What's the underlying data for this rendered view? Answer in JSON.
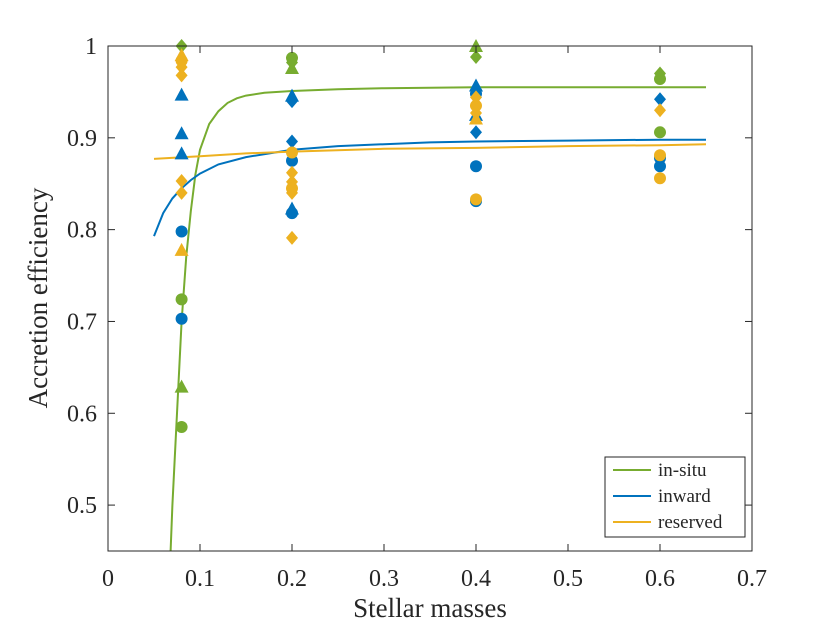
{
  "chart_data": {
    "type": "scatter",
    "title": "",
    "xlabel": "Stellar masses",
    "ylabel": "Accretion efficiency",
    "xlim": [
      0,
      0.7
    ],
    "ylim": [
      0.45,
      1.0
    ],
    "xticks": [
      0,
      0.1,
      0.2,
      0.3,
      0.4,
      0.5,
      0.6,
      0.7
    ],
    "xtick_labels": [
      "0",
      "0.1",
      "0.2",
      "0.3",
      "0.4",
      "0.5",
      "0.6",
      "0.7"
    ],
    "yticks": [
      0.5,
      0.6,
      0.7,
      0.8,
      0.9,
      1.0
    ],
    "ytick_labels": [
      "0.5",
      "0.6",
      "0.7",
      "0.8",
      "0.9",
      "1"
    ],
    "grid": false,
    "legend_position": "bottom-right",
    "series": [
      {
        "name": "in-situ",
        "color": "#77AC30",
        "points": [
          {
            "x": 0.08,
            "y": 1.0,
            "marker": "diamond"
          },
          {
            "x": 0.08,
            "y": 0.724,
            "marker": "circle"
          },
          {
            "x": 0.08,
            "y": 0.629,
            "marker": "triangle"
          },
          {
            "x": 0.08,
            "y": 0.585,
            "marker": "circle"
          },
          {
            "x": 0.2,
            "y": 0.987,
            "marker": "circle"
          },
          {
            "x": 0.2,
            "y": 0.982,
            "marker": "diamond"
          },
          {
            "x": 0.2,
            "y": 0.976,
            "marker": "triangle"
          },
          {
            "x": 0.4,
            "y": 1.0,
            "marker": "triangle"
          },
          {
            "x": 0.4,
            "y": 0.988,
            "marker": "diamond"
          },
          {
            "x": 0.6,
            "y": 0.97,
            "marker": "diamond"
          },
          {
            "x": 0.6,
            "y": 0.964,
            "marker": "circle"
          },
          {
            "x": 0.6,
            "y": 0.906,
            "marker": "circle"
          }
        ],
        "fit": {
          "x": [
            0.068,
            0.07,
            0.075,
            0.08,
            0.085,
            0.09,
            0.095,
            0.1,
            0.11,
            0.12,
            0.13,
            0.14,
            0.15,
            0.17,
            0.2,
            0.25,
            0.3,
            0.4,
            0.5,
            0.6,
            0.65
          ],
          "y": [
            0.45,
            0.5,
            0.6,
            0.7,
            0.77,
            0.82,
            0.86,
            0.887,
            0.915,
            0.929,
            0.938,
            0.943,
            0.946,
            0.949,
            0.951,
            0.953,
            0.954,
            0.955,
            0.955,
            0.955,
            0.955
          ]
        }
      },
      {
        "name": "inward",
        "color": "#0072BD",
        "points": [
          {
            "x": 0.08,
            "y": 0.947,
            "marker": "triangle"
          },
          {
            "x": 0.08,
            "y": 0.905,
            "marker": "triangle"
          },
          {
            "x": 0.08,
            "y": 0.883,
            "marker": "triangle"
          },
          {
            "x": 0.08,
            "y": 0.798,
            "marker": "circle"
          },
          {
            "x": 0.08,
            "y": 0.703,
            "marker": "circle"
          },
          {
            "x": 0.2,
            "y": 0.946,
            "marker": "triangle"
          },
          {
            "x": 0.2,
            "y": 0.94,
            "marker": "diamond"
          },
          {
            "x": 0.2,
            "y": 0.896,
            "marker": "diamond"
          },
          {
            "x": 0.2,
            "y": 0.875,
            "marker": "circle"
          },
          {
            "x": 0.2,
            "y": 0.823,
            "marker": "triangle"
          },
          {
            "x": 0.2,
            "y": 0.818,
            "marker": "circle"
          },
          {
            "x": 0.4,
            "y": 0.957,
            "marker": "triangle"
          },
          {
            "x": 0.4,
            "y": 0.948,
            "marker": "circle"
          },
          {
            "x": 0.4,
            "y": 0.925,
            "marker": "triangle"
          },
          {
            "x": 0.4,
            "y": 0.906,
            "marker": "diamond"
          },
          {
            "x": 0.4,
            "y": 0.869,
            "marker": "circle"
          },
          {
            "x": 0.4,
            "y": 0.831,
            "marker": "circle"
          },
          {
            "x": 0.6,
            "y": 0.942,
            "marker": "diamond"
          },
          {
            "x": 0.6,
            "y": 0.878,
            "marker": "circle"
          },
          {
            "x": 0.6,
            "y": 0.869,
            "marker": "circle"
          }
        ],
        "fit": {
          "x": [
            0.05,
            0.06,
            0.07,
            0.08,
            0.09,
            0.1,
            0.12,
            0.15,
            0.2,
            0.25,
            0.3,
            0.35,
            0.4,
            0.5,
            0.6,
            0.65
          ],
          "y": [
            0.793,
            0.818,
            0.834,
            0.845,
            0.854,
            0.861,
            0.871,
            0.879,
            0.887,
            0.891,
            0.893,
            0.895,
            0.896,
            0.897,
            0.898,
            0.898
          ]
        }
      },
      {
        "name": "reserved",
        "color": "#EDB120",
        "points": [
          {
            "x": 0.08,
            "y": 0.99,
            "marker": "triangle"
          },
          {
            "x": 0.08,
            "y": 0.984,
            "marker": "circle"
          },
          {
            "x": 0.08,
            "y": 0.977,
            "marker": "diamond"
          },
          {
            "x": 0.08,
            "y": 0.968,
            "marker": "diamond"
          },
          {
            "x": 0.08,
            "y": 0.853,
            "marker": "diamond"
          },
          {
            "x": 0.08,
            "y": 0.84,
            "marker": "diamond"
          },
          {
            "x": 0.08,
            "y": 0.778,
            "marker": "triangle"
          },
          {
            "x": 0.2,
            "y": 0.884,
            "marker": "circle"
          },
          {
            "x": 0.2,
            "y": 0.862,
            "marker": "diamond"
          },
          {
            "x": 0.2,
            "y": 0.852,
            "marker": "diamond"
          },
          {
            "x": 0.2,
            "y": 0.845,
            "marker": "circle"
          },
          {
            "x": 0.2,
            "y": 0.84,
            "marker": "diamond"
          },
          {
            "x": 0.2,
            "y": 0.791,
            "marker": "diamond"
          },
          {
            "x": 0.4,
            "y": 0.944,
            "marker": "diamond"
          },
          {
            "x": 0.4,
            "y": 0.935,
            "marker": "circle"
          },
          {
            "x": 0.4,
            "y": 0.927,
            "marker": "diamond"
          },
          {
            "x": 0.4,
            "y": 0.921,
            "marker": "triangle"
          },
          {
            "x": 0.4,
            "y": 0.833,
            "marker": "circle"
          },
          {
            "x": 0.6,
            "y": 0.93,
            "marker": "diamond"
          },
          {
            "x": 0.6,
            "y": 0.881,
            "marker": "circle"
          },
          {
            "x": 0.6,
            "y": 0.856,
            "marker": "circle"
          }
        ],
        "fit": {
          "x": [
            0.05,
            0.1,
            0.15,
            0.2,
            0.3,
            0.4,
            0.5,
            0.6,
            0.65
          ],
          "y": [
            0.877,
            0.88,
            0.883,
            0.885,
            0.888,
            0.889,
            0.891,
            0.892,
            0.893
          ]
        }
      }
    ]
  }
}
